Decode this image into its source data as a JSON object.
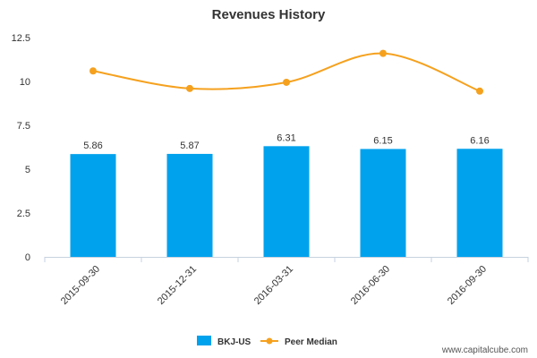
{
  "chart_data": {
    "type": "bar",
    "title": "Revenues History",
    "xlabel": "",
    "ylabel": "",
    "categories": [
      "2015-09-30",
      "2015-12-31",
      "2016-03-31",
      "2016-06-30",
      "2016-09-30"
    ],
    "ylim": [
      0,
      12.5
    ],
    "yticks": [
      "0",
      "2.5",
      "5",
      "7.5",
      "10",
      "12.5"
    ],
    "grid": false,
    "legend_position": "bottom",
    "series": [
      {
        "name": "BKJ-US",
        "kind": "bar",
        "color": "#00a2ed",
        "values": [
          5.86,
          5.87,
          6.31,
          6.15,
          6.16
        ],
        "data_labels": [
          "5.86",
          "5.87",
          "6.31",
          "6.15",
          "6.16"
        ]
      },
      {
        "name": "Peer Median",
        "kind": "line",
        "color": "#f5a11e",
        "values": [
          10.6,
          9.6,
          9.95,
          11.6,
          9.45
        ]
      }
    ]
  },
  "footer": {
    "watermark": "www.capitalcube.com"
  }
}
